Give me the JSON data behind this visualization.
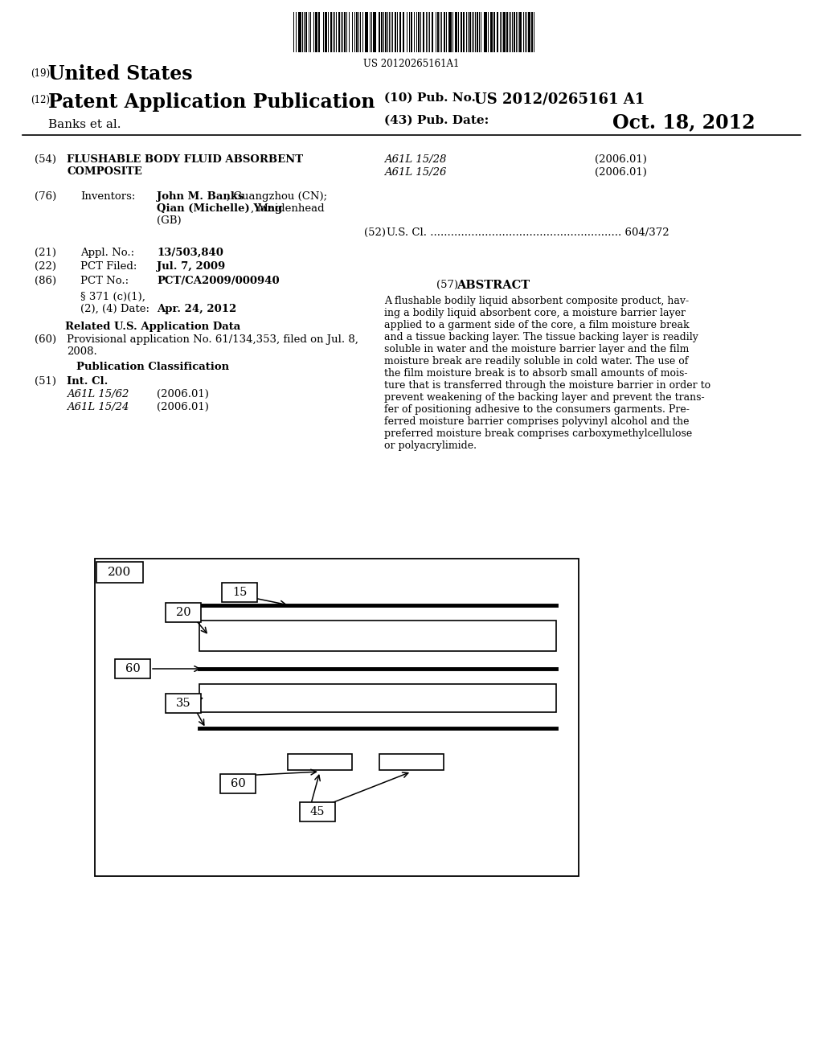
{
  "background_color": "#ffffff",
  "barcode_text": "US 20120265161A1",
  "header_19": "(19)",
  "header_19_text": "United States",
  "header_12": "(12)",
  "header_12_text": "Patent Application Publication",
  "header_10_a": "(10) Pub. No.:",
  "header_10_b": "US 2012/0265161 A1",
  "header_43": "(43) Pub. Date:",
  "header_date": "Oct. 18, 2012",
  "header_authors": "Banks et al.",
  "section54_label": "(54)",
  "section54_title": "FLUSHABLE BODY FLUID ABSORBENT\nCOMPOSITE",
  "section76_label": "(76)",
  "section76_title": "Inventors:",
  "section76_inventor1a": "John M. Banks",
  "section76_inventor1b": ", Guangzhou (CN);",
  "section76_inventor2a": "Qian (Michelle) Yang",
  "section76_inventor2b": ", Maidenhead",
  "section76_inventor3": "(GB)",
  "section21_label": "(21)",
  "section21_title": "Appl. No.:",
  "section21_text": "13/503,840",
  "section22_label": "(22)",
  "section22_title": "PCT Filed:",
  "section22_text": "Jul. 7, 2009",
  "section86_label": "(86)",
  "section86_title": "PCT No.:",
  "section86_text": "PCT/CA2009/000940",
  "section86b_line1": "§ 371 (c)(1),",
  "section86b_line2": "(2), (4) Date:",
  "section86b_date": "Apr. 24, 2012",
  "section_related": "Related U.S. Application Data",
  "section60_label": "(60)",
  "section60_text": "Provisional application No. 61/134,353, filed on Jul. 8,\n2008.",
  "section_pub_class": "Publication Classification",
  "section51_label": "(51)",
  "section51_title": "Int. Cl.",
  "section51_a": "A61L 15/62",
  "section51_a_date": "(2006.01)",
  "section51_b": "A61L 15/24",
  "section51_b_date": "(2006.01)",
  "section54r_a": "A61L 15/28",
  "section54r_a_date": "(2006.01)",
  "section54r_b": "A61L 15/26",
  "section54r_b_date": "(2006.01)",
  "section52_label": "(52)",
  "section52_text": "U.S. Cl. ........................................................ 604/372",
  "section57_label": "(57)",
  "section57_title": "ABSTRACT",
  "abstract_text": "A flushable bodily liquid absorbent composite product, hav-\ning a bodily liquid absorbent core, a moisture barrier layer\napplied to a garment side of the core, a film moisture break\nand a tissue backing layer. The tissue backing layer is readily\nsoluble in water and the moisture barrier layer and the film\nmoisture break are readily soluble in cold water. The use of\nthe film moisture break is to absorb small amounts of mois-\nture that is transferred through the moisture barrier in order to\nprevent weakening of the backing layer and prevent the trans-\nfer of positioning adhesive to the consumers garments. Pre-\nferred moisture barrier comprises polyvinyl alcohol and the\npreferred moisture break comprises carboxymethylcellulose\nor polyacrylimide."
}
